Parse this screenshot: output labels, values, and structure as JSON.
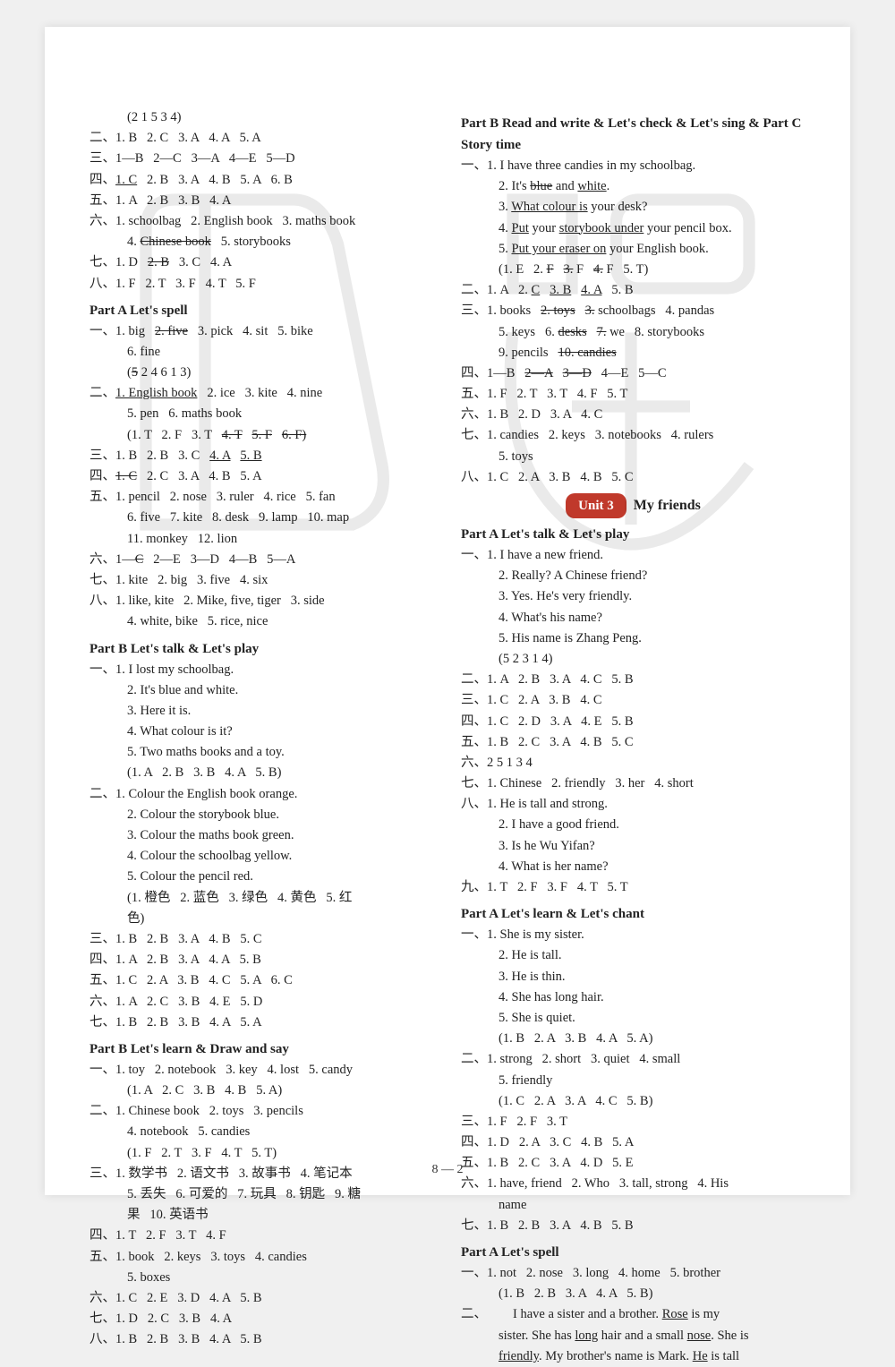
{
  "pageNumber": "8 — 2",
  "watermark": {
    "color": "#888888",
    "opacity": 0.08
  },
  "leftColumn": [
    {
      "t": "line",
      "indent": true,
      "text": "(2 1 5 3 4)"
    },
    {
      "t": "line",
      "text": "二、1. B   2. C   3. A   4. A   5. A"
    },
    {
      "t": "line",
      "text": "三、1—B   2—C   3—A   4—E   5—D"
    },
    {
      "t": "line",
      "segs": [
        [
          "四、",
          ""
        ],
        [
          "1. C",
          "underline"
        ],
        [
          "   2. B   3. A   4. B   5. A   6. B",
          ""
        ]
      ]
    },
    {
      "t": "line",
      "text": "五、1. A   2. B   3. B   4. A"
    },
    {
      "t": "line",
      "text": "六、1. schoolbag   2. English book   3. maths book"
    },
    {
      "t": "line",
      "indent": true,
      "segs": [
        [
          "4. ",
          ""
        ],
        [
          "Chinese book",
          "strike"
        ],
        [
          "   5. storybooks",
          ""
        ]
      ]
    },
    {
      "t": "line",
      "segs": [
        [
          "七、1. D   ",
          ""
        ],
        [
          "2. B",
          "strike"
        ],
        [
          "   3. C   4. A",
          ""
        ]
      ]
    },
    {
      "t": "line",
      "text": "八、1. F   2. T   3. F   4. T   5. F"
    },
    {
      "t": "head",
      "text": "Part A   Let's spell"
    },
    {
      "t": "line",
      "segs": [
        [
          "一、1. big   ",
          ""
        ],
        [
          "2. five",
          "strike"
        ],
        [
          "   3. pick   4. sit   5. bike",
          ""
        ]
      ]
    },
    {
      "t": "line",
      "indent": true,
      "text": "6. fine"
    },
    {
      "t": "line",
      "indent": true,
      "segs": [
        [
          "(",
          ""
        ],
        [
          "5",
          "strike"
        ],
        [
          " 2 4 6 1 3)",
          ""
        ]
      ]
    },
    {
      "t": "line",
      "segs": [
        [
          "二、",
          ""
        ],
        [
          "1. English book",
          "underline"
        ],
        [
          "   2. ice   3. kite   4. nine",
          ""
        ]
      ]
    },
    {
      "t": "line",
      "indent": true,
      "text": "5. pen   6. maths book"
    },
    {
      "t": "line",
      "indent": true,
      "segs": [
        [
          "(1. T   2. F   3. T   ",
          ""
        ],
        [
          "4. T",
          "strike"
        ],
        [
          "   ",
          ""
        ],
        [
          "5. F",
          "strike"
        ],
        [
          "   ",
          ""
        ],
        [
          "6. F)",
          "strike"
        ]
      ]
    },
    {
      "t": "line",
      "segs": [
        [
          "三、1. B   2. B   3. C   ",
          ""
        ],
        [
          "4. A",
          "underline"
        ],
        [
          "   ",
          ""
        ],
        [
          "5. B",
          "underline"
        ]
      ]
    },
    {
      "t": "line",
      "segs": [
        [
          "四、",
          ""
        ],
        [
          "1. C",
          "strike"
        ],
        [
          "   2. C   3. A   4. B   5. A",
          ""
        ]
      ]
    },
    {
      "t": "line",
      "text": "五、1. pencil   2. nose   3. ruler   4. rice   5. fan"
    },
    {
      "t": "line",
      "indent": true,
      "text": "6. five   7. kite   8. desk   9. lamp   10. map"
    },
    {
      "t": "line",
      "indent": true,
      "text": "11. monkey   12. lion"
    },
    {
      "t": "line",
      "segs": [
        [
          "六、1—",
          ""
        ],
        [
          "C",
          "strike"
        ],
        [
          "   2—E   3—D   4—B   5—A",
          ""
        ]
      ]
    },
    {
      "t": "line",
      "text": "七、1. kite   2. big   3. five   4. six"
    },
    {
      "t": "line",
      "text": "八、1. like, kite   2. Mike, five, tiger   3. side"
    },
    {
      "t": "line",
      "indent": true,
      "text": "4. white, bike   5. rice, nice"
    },
    {
      "t": "head",
      "text": "Part B   Let's talk & Let's play"
    },
    {
      "t": "line",
      "text": "一、1. I lost my schoolbag."
    },
    {
      "t": "line",
      "indent": true,
      "text": "2. It's blue and white."
    },
    {
      "t": "line",
      "indent": true,
      "text": "3. Here it is."
    },
    {
      "t": "line",
      "indent": true,
      "text": "4. What colour is it?"
    },
    {
      "t": "line",
      "indent": true,
      "text": "5. Two maths books and a toy."
    },
    {
      "t": "line",
      "indent": true,
      "text": "(1. A   2. B   3. B   4. A   5. B)"
    },
    {
      "t": "line",
      "text": "二、1. Colour the English book orange."
    },
    {
      "t": "line",
      "indent": true,
      "text": "2. Colour the storybook blue."
    },
    {
      "t": "line",
      "indent": true,
      "text": "3. Colour the maths book green."
    },
    {
      "t": "line",
      "indent": true,
      "text": "4. Colour the schoolbag yellow."
    },
    {
      "t": "line",
      "indent": true,
      "text": "5. Colour the pencil red."
    },
    {
      "t": "line",
      "indent": true,
      "text": "(1. 橙色   2. 蓝色   3. 绿色   4. 黄色   5. 红"
    },
    {
      "t": "line",
      "indent": true,
      "text": "色)"
    },
    {
      "t": "line",
      "text": "三、1. B   2. B   3. A   4. B   5. C"
    },
    {
      "t": "line",
      "text": "四、1. A   2. B   3. A   4. A   5. B"
    },
    {
      "t": "line",
      "text": "五、1. C   2. A   3. B   4. C   5. A   6. C"
    },
    {
      "t": "line",
      "text": "六、1. A   2. C   3. B   4. E   5. D"
    },
    {
      "t": "line",
      "text": "七、1. B   2. B   3. B   4. A   5. A"
    },
    {
      "t": "head",
      "text": "Part B   Let's learn & Draw and say"
    },
    {
      "t": "line",
      "text": "一、1. toy   2. notebook   3. key   4. lost   5. candy"
    },
    {
      "t": "line",
      "indent": true,
      "text": "(1. A   2. C   3. B   4. B   5. A)"
    },
    {
      "t": "line",
      "text": "二、1. Chinese book   2. toys   3. pencils"
    },
    {
      "t": "line",
      "indent": true,
      "text": "4. notebook   5. candies"
    },
    {
      "t": "line",
      "indent": true,
      "text": "(1. F   2. T   3. F   4. T   5. T)"
    },
    {
      "t": "line",
      "text": "三、1. 数学书   2. 语文书   3. 故事书   4. 笔记本"
    },
    {
      "t": "line",
      "indent": true,
      "text": "5. 丢失   6. 可爱的   7. 玩具   8. 钥匙   9. 糖"
    },
    {
      "t": "line",
      "indent": true,
      "text": "果   10. 英语书"
    },
    {
      "t": "line",
      "text": "四、1. T   2. F   3. T   4. F"
    },
    {
      "t": "line",
      "text": "五、1. book   2. keys   3. toys   4. candies"
    },
    {
      "t": "line",
      "indent": true,
      "text": "5. boxes"
    },
    {
      "t": "line",
      "text": "六、1. C   2. E   3. D   4. A   5. B"
    },
    {
      "t": "line",
      "text": "七、1. D   2. C   3. B   4. A"
    },
    {
      "t": "line",
      "text": "八、1. B   2. B   3. B   4. A   5. B"
    }
  ],
  "rightColumn": [
    {
      "t": "head",
      "text": "Part B   Read and write & Let's check & Let's sing & Part C   Story time"
    },
    {
      "t": "line",
      "text": "一、1. I have three candies in my schoolbag."
    },
    {
      "t": "line",
      "indent": true,
      "segs": [
        [
          "2. It's ",
          ""
        ],
        [
          "blue",
          "strike"
        ],
        [
          " and ",
          ""
        ],
        [
          "white",
          "underline"
        ],
        [
          ".",
          ""
        ]
      ]
    },
    {
      "t": "line",
      "indent": true,
      "segs": [
        [
          "3. ",
          ""
        ],
        [
          "What colour is",
          "underline"
        ],
        [
          " your desk?",
          ""
        ]
      ]
    },
    {
      "t": "line",
      "indent": true,
      "segs": [
        [
          "4. ",
          ""
        ],
        [
          "Put",
          "underline"
        ],
        [
          " your ",
          ""
        ],
        [
          "storybook under",
          "underline"
        ],
        [
          " your pencil box.",
          ""
        ]
      ]
    },
    {
      "t": "line",
      "indent": true,
      "segs": [
        [
          "5. ",
          ""
        ],
        [
          "Put your eraser on",
          "underline"
        ],
        [
          " your English book.",
          ""
        ]
      ]
    },
    {
      "t": "line",
      "indent": true,
      "segs": [
        [
          "(1. E   2. ",
          ""
        ],
        [
          "F",
          "strike"
        ],
        [
          "   ",
          ""
        ],
        [
          "3.",
          "strike"
        ],
        [
          " F   ",
          ""
        ],
        [
          "4.",
          "strike"
        ],
        [
          " F   5. T)",
          ""
        ]
      ]
    },
    {
      "t": "line",
      "segs": [
        [
          "二、1. A   2. ",
          ""
        ],
        [
          "C",
          "underline"
        ],
        [
          "   ",
          ""
        ],
        [
          "3. B",
          "underline"
        ],
        [
          "   ",
          ""
        ],
        [
          "4. A",
          "underline"
        ],
        [
          "   5. B",
          ""
        ]
      ]
    },
    {
      "t": "line",
      "segs": [
        [
          "三、1. books   ",
          ""
        ],
        [
          "2. toys",
          "strike"
        ],
        [
          "   ",
          ""
        ],
        [
          "3.",
          "strike"
        ],
        [
          " schoolbags   4. pandas",
          ""
        ]
      ]
    },
    {
      "t": "line",
      "indent": true,
      "segs": [
        [
          "5. keys   6. ",
          ""
        ],
        [
          "desks",
          "strike"
        ],
        [
          "   ",
          ""
        ],
        [
          "7.",
          "strike"
        ],
        [
          " we   8. storybooks",
          ""
        ]
      ]
    },
    {
      "t": "line",
      "indent": true,
      "segs": [
        [
          "9. pencils   ",
          ""
        ],
        [
          "10. candies",
          "strike"
        ]
      ]
    },
    {
      "t": "line",
      "segs": [
        [
          "四、1—B   ",
          ""
        ],
        [
          "2—A",
          "strike"
        ],
        [
          "   ",
          ""
        ],
        [
          "3—D",
          "strike"
        ],
        [
          "   4—E   5—C",
          ""
        ]
      ]
    },
    {
      "t": "line",
      "text": "五、1. F   2. T   3. T   4. F   5. T"
    },
    {
      "t": "line",
      "text": "六、1. B   2. D   3. A   4. C"
    },
    {
      "t": "line",
      "text": "七、1. candies   2. keys   3. notebooks   4. rulers"
    },
    {
      "t": "line",
      "indent": true,
      "text": "5. toys"
    },
    {
      "t": "line",
      "text": "八、1. C   2. A   3. B   4. B   5. C"
    },
    {
      "t": "unit",
      "badge": "Unit 3",
      "title": "My friends"
    },
    {
      "t": "head",
      "text": "Part A   Let's talk & Let's play"
    },
    {
      "t": "line",
      "text": "一、1. I have a new friend."
    },
    {
      "t": "line",
      "indent": true,
      "text": "2. Really? A Chinese friend?"
    },
    {
      "t": "line",
      "indent": true,
      "text": "3. Yes. He's very friendly."
    },
    {
      "t": "line",
      "indent": true,
      "text": "4. What's his name?"
    },
    {
      "t": "line",
      "indent": true,
      "text": "5. His name is Zhang Peng."
    },
    {
      "t": "line",
      "indent": true,
      "text": "(5 2 3 1 4)"
    },
    {
      "t": "line",
      "text": "二、1. A   2. B   3. A   4. C   5. B"
    },
    {
      "t": "line",
      "text": "三、1. C   2. A   3. B   4. C"
    },
    {
      "t": "line",
      "text": "四、1. C   2. D   3. A   4. E   5. B"
    },
    {
      "t": "line",
      "text": "五、1. B   2. C   3. A   4. B   5. C"
    },
    {
      "t": "line",
      "text": "六、2 5 1 3 4"
    },
    {
      "t": "line",
      "text": "七、1. Chinese   2. friendly   3. her   4. short"
    },
    {
      "t": "line",
      "text": "八、1. He is tall and strong."
    },
    {
      "t": "line",
      "indent": true,
      "text": "2. I have a good friend."
    },
    {
      "t": "line",
      "indent": true,
      "text": "3. Is he Wu Yifan?"
    },
    {
      "t": "line",
      "indent": true,
      "text": "4. What is her name?"
    },
    {
      "t": "line",
      "text": "九、1. T   2. F   3. F   4. T   5. T"
    },
    {
      "t": "head",
      "text": "Part A   Let's learn & Let's chant"
    },
    {
      "t": "line",
      "text": "一、1. She is my sister."
    },
    {
      "t": "line",
      "indent": true,
      "text": "2. He is tall."
    },
    {
      "t": "line",
      "indent": true,
      "text": "3. He is thin."
    },
    {
      "t": "line",
      "indent": true,
      "text": "4. She has long hair."
    },
    {
      "t": "line",
      "indent": true,
      "text": "5. She is quiet."
    },
    {
      "t": "line",
      "indent": true,
      "text": "(1. B   2. A   3. B   4. A   5. A)"
    },
    {
      "t": "line",
      "text": "二、1. strong   2. short   3. quiet   4. small"
    },
    {
      "t": "line",
      "indent": true,
      "text": "5. friendly"
    },
    {
      "t": "line",
      "indent": true,
      "text": "(1. C   2. A   3. A   4. C   5. B)"
    },
    {
      "t": "line",
      "text": "三、1. F   2. F   3. T"
    },
    {
      "t": "line",
      "text": "四、1. D   2. A   3. C   4. B   5. A"
    },
    {
      "t": "line",
      "text": "五、1. B   2. C   3. A   4. D   5. E"
    },
    {
      "t": "line",
      "text": "六、1. have, friend   2. Who   3. tall, strong   4. His"
    },
    {
      "t": "line",
      "indent": true,
      "text": "name"
    },
    {
      "t": "line",
      "text": "七、1. B   2. B   3. A   4. B   5. B"
    },
    {
      "t": "head",
      "text": "Part A   Let's spell"
    },
    {
      "t": "line",
      "text": "一、1. not   2. nose   3. long   4. home   5. brother"
    },
    {
      "t": "line",
      "indent": true,
      "text": "(1. B   2. B   3. A   4. A   5. B)"
    },
    {
      "t": "line",
      "segs": [
        [
          "二、        I have a sister and a brother. ",
          ""
        ],
        [
          "Rose",
          "underline"
        ],
        [
          " is my",
          ""
        ]
      ]
    },
    {
      "t": "line",
      "indent": true,
      "segs": [
        [
          "sister. She has ",
          ""
        ],
        [
          "long",
          "underline"
        ],
        [
          " hair and a small ",
          ""
        ],
        [
          "nose",
          "underline"
        ],
        [
          ". She is",
          ""
        ]
      ]
    },
    {
      "t": "line",
      "indent": true,
      "segs": [
        [
          "friendly",
          "underline"
        ],
        [
          ". My brother's name is Mark. ",
          ""
        ],
        [
          "He",
          "underline"
        ],
        [
          " is tall",
          ""
        ]
      ]
    }
  ]
}
